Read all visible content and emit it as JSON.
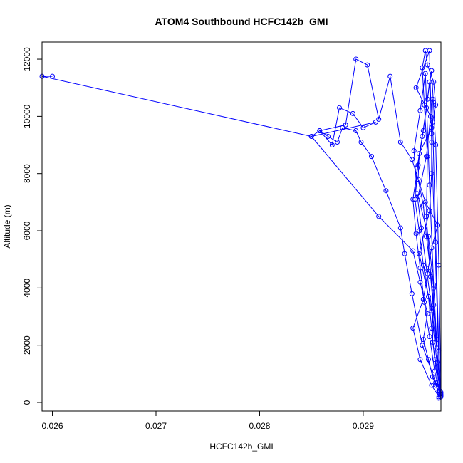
{
  "chart_data": {
    "type": "line",
    "title": "ATOM4 Southbound HCFC142b_GMI",
    "xlabel": "HCFC142b_GMI",
    "ylabel": "Altitude (m)",
    "xlim": [
      0.0259,
      0.02975
    ],
    "ylim": [
      0,
      12300
    ],
    "xticks": [
      0.026,
      0.027,
      0.028,
      0.029
    ],
    "xtick_labels": [
      "0.026",
      "0.027",
      "0.028",
      "0.029"
    ],
    "yticks": [
      0,
      2000,
      4000,
      6000,
      8000,
      10000,
      12000
    ],
    "ytick_labels": [
      "0",
      "2000",
      "4000",
      "6000",
      "8000",
      "10000",
      "12000"
    ],
    "grid": false,
    "series_color": "#0000ff",
    "series": [
      {
        "marker": "open-circle",
        "x": [
          0.02973,
          0.02966,
          0.02955,
          0.02948,
          0.02958,
          0.02962,
          0.02966,
          0.02972,
          0.0296,
          0.02953,
          0.02954,
          0.02966,
          0.0297,
          0.02968,
          0.02962,
          0.0296,
          0.02957,
          0.02959,
          0.02962,
          0.02961,
          0.02965,
          0.02975,
          0.02967,
          0.02968,
          0.02963,
          0.02953,
          0.02961,
          0.02965,
          0.02951,
          0.02964,
          0.02966,
          0.02974,
          0.02966,
          0.02954,
          0.02964,
          0.02966,
          0.02966,
          0.02967
        ],
        "y": [
          200,
          600,
          1500,
          2600,
          3600,
          4500,
          5400,
          6200,
          7000,
          7800,
          8700,
          9600,
          10400,
          11200,
          11800,
          12300,
          11700,
          10400,
          8600,
          6500,
          4400,
          250,
          2100,
          4000,
          5800,
          7200,
          8600,
          10000,
          11000,
          12300,
          9100,
          400,
          3200,
          5200,
          6700,
          8000,
          9400,
          10600
        ]
      },
      {
        "marker": "open-circle",
        "x": [
          0.02973,
          0.0297,
          0.02957,
          0.02947,
          0.0294,
          0.02936,
          0.02922,
          0.02908,
          0.02898,
          0.02893,
          0.0288,
          0.02875,
          0.02866,
          0.02858,
          0.0285,
          0.02912,
          0.029,
          0.0289,
          0.02877,
          0.0287,
          0.02858,
          0.02883,
          0.02893,
          0.02904,
          0.02915,
          0.02926,
          0.02936,
          0.02947,
          0.02953,
          0.02958,
          0.02961,
          0.02965,
          0.02968,
          0.02971
        ],
        "y": [
          150,
          700,
          2000,
          3800,
          5200,
          6100,
          7400,
          8600,
          9100,
          9500,
          9600,
          9100,
          9300,
          9500,
          9300,
          9800,
          9600,
          10100,
          10300,
          9000,
          9500,
          9700,
          12000,
          11800,
          9900,
          11400,
          9100,
          8500,
          7800,
          6900,
          5800,
          4600,
          3400,
          2200
        ]
      },
      {
        "marker": "open-circle",
        "x": [
          0.026,
          0.0259,
          0.0285,
          0.02915,
          0.02948,
          0.02955,
          0.02962,
          0.02958,
          0.02963,
          0.02967,
          0.0297,
          0.02973,
          0.02975,
          0.02972,
          0.02969,
          0.02966,
          0.02963,
          0.02958,
          0.02954,
          0.0295,
          0.02952,
          0.02957,
          0.02961,
          0.02964,
          0.02967,
          0.0297,
          0.02973,
          0.02975
        ],
        "y": [
          11400,
          11400,
          9300,
          6500,
          5300,
          4200,
          3100,
          2200,
          1500,
          900,
          600,
          400,
          250,
          700,
          1500,
          2600,
          3700,
          4800,
          6000,
          7100,
          8200,
          9300,
          10300,
          11200,
          9800,
          5600,
          1800,
          300
        ]
      },
      {
        "marker": "open-circle",
        "x": [
          0.02974,
          0.02969,
          0.02964,
          0.02959,
          0.02955,
          0.02951,
          0.02948,
          0.02953,
          0.02958,
          0.02962,
          0.02966,
          0.0297,
          0.02973,
          0.02975,
          0.02971,
          0.02966,
          0.02961,
          0.02956,
          0.02952,
          0.02949,
          0.02955,
          0.0296,
          0.02964,
          0.02968,
          0.02972,
          0.02975
        ],
        "y": [
          300,
          1100,
          2300,
          3500,
          4700,
          5900,
          7100,
          8300,
          9500,
          10600,
          11600,
          9000,
          4800,
          350,
          1900,
          3300,
          4700,
          6100,
          7300,
          8800,
          10200,
          11500,
          7600,
          4100,
          1400,
          200
        ]
      }
    ]
  }
}
